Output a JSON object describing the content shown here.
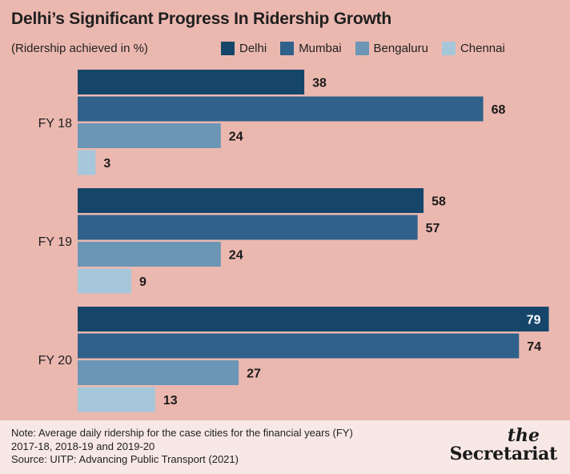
{
  "title": "Delhi’s Significant Progress In Ridership Growth",
  "subtitle": "(Ridership achieved in %)",
  "colors": {
    "Delhi": "#15466a",
    "Mumbai": "#2f618a",
    "Bengaluru": "#6b96b5",
    "Chennai": "#a6c7da",
    "background": "#ebb8b0",
    "footer": "#f7e8e5"
  },
  "chart_data": {
    "type": "bar",
    "orientation": "horizontal",
    "title": "Delhi’s Significant Progress In Ridership Growth",
    "subtitle": "(Ridership achieved in %)",
    "categories": [
      "FY 18",
      "FY 19",
      "FY 20"
    ],
    "series": [
      {
        "name": "Delhi",
        "values": [
          38,
          58,
          79
        ]
      },
      {
        "name": "Mumbai",
        "values": [
          68,
          57,
          74
        ]
      },
      {
        "name": "Bengaluru",
        "values": [
          24,
          24,
          27
        ]
      },
      {
        "name": "Chennai",
        "values": [
          3,
          9,
          13
        ]
      }
    ],
    "xlim": [
      0,
      80
    ],
    "grid": false,
    "legend_position": "top-right",
    "data_labels": true
  },
  "footer": {
    "note_line1": "Note: Average daily ridership for the case cities for the financial years (FY)",
    "note_line2": "2017-18, 2018-19 and 2019-20",
    "source": "Source: UITP: Advancing Public Transport (2021)",
    "logo_the": "the",
    "logo_name": "Secretariat"
  }
}
